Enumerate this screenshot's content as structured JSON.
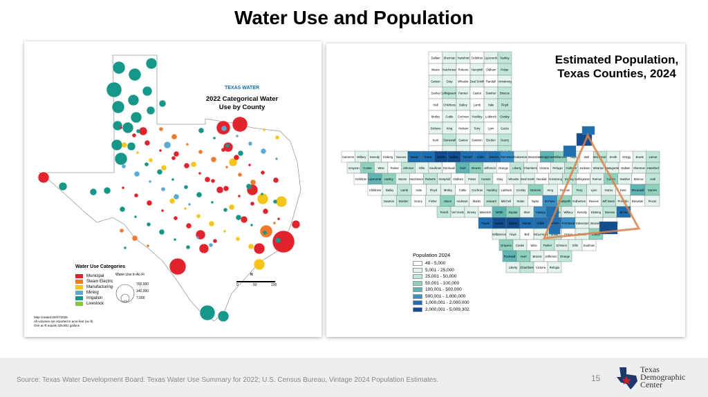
{
  "slide": {
    "title": "Water Use and Population",
    "page_number": "15",
    "source": "Source: Texas Water Development Board. Texas Water Use Summary for 2022; U.S. Census Bureau, Vintage 2024 Population Estimates."
  },
  "left_map": {
    "logo_text": "TEXAS WATER",
    "title": "2022 Categorical Water Use by County",
    "legend_title": "Water Use Categories",
    "categories": [
      {
        "label": "Municipal",
        "color": "#e3232c"
      },
      {
        "label": "Steam Electric",
        "color": "#f27a2a"
      },
      {
        "label": "Manufacturing",
        "color": "#f5c51a"
      },
      {
        "label": "Mining",
        "color": "#5aa9d6"
      },
      {
        "label": "Irrigation",
        "color": "#15978a"
      },
      {
        "label": "Livestock",
        "color": "#8cc63f"
      }
    ],
    "size_legend_title": "Water Use in Ac-Ft",
    "size_values": [
      "700,000",
      "140,000",
      "7,000"
    ],
    "scale_labels": [
      "0",
      "50",
      "100"
    ],
    "north": "N",
    "notes": [
      "Map created 02/07/2025",
      "All volumes are reported in acre-feet (ac-ft)",
      "One ac-ft equals 325,851 gallons"
    ]
  },
  "right_map": {
    "title": "Estimated Population, Texas Counties, 2024",
    "legend_title": "Population 2024",
    "legend": [
      {
        "label": "48 - 5,000",
        "color": "#ffffff"
      },
      {
        "label": "5,001 - 25,000",
        "color": "#e3f4ec"
      },
      {
        "label": "25,001 - 50,000",
        "color": "#bfe6d6"
      },
      {
        "label": "50,001 - 100,000",
        "color": "#8fd1bf"
      },
      {
        "label": "100,001 - 500,000",
        "color": "#5fb5b5"
      },
      {
        "label": "500,001 - 1,000,000",
        "color": "#3a8fc4"
      },
      {
        "label": "1,000,001 - 2,000,000",
        "color": "#1f6fb0"
      },
      {
        "label": "2,000,001 - 5,009,302",
        "color": "#114d8f"
      }
    ],
    "county_labels": [
      "Dallam",
      "Sherman",
      "Hansford",
      "Ochiltree",
      "Lipscomb",
      "Hartley",
      "Moore",
      "Hutchinson",
      "Roberts",
      "Hemphill",
      "Oldham",
      "Potter",
      "Carson",
      "Gray",
      "Wheeler",
      "Deaf Smith",
      "Randall",
      "Armstrong",
      "Donley",
      "Collingsworth",
      "Parmer",
      "Castro",
      "Swisher",
      "Briscoe",
      "Hall",
      "Childress",
      "Bailey",
      "Lamb",
      "Hale",
      "Floyd",
      "Motley",
      "Cottle",
      "Cochran",
      "Hockley",
      "Lubbock",
      "Crosby",
      "Dickens",
      "King",
      "Yoakum",
      "Terry",
      "Lynn",
      "Garza",
      "Kent",
      "Stonewall",
      "Gaines",
      "Dawson",
      "Borden",
      "Scurry",
      "Fisher",
      "Jones",
      "Andrews",
      "Martin",
      "Howard",
      "Mitchell",
      "Nolan",
      "Taylor",
      "El Paso",
      "Hudspeth",
      "Culberson",
      "Reeves",
      "Jeff Davis",
      "Presidio",
      "Brewster",
      "Pecos",
      "Terrell",
      "Val Verde",
      "Kinney",
      "Maverick",
      "Webb",
      "Zapata",
      "Starr",
      "Hidalgo",
      "Cameron",
      "Willacy",
      "Kenedy",
      "Kleberg",
      "Nueces",
      "Bexar",
      "Travis",
      "Harris",
      "Dallas",
      "Tarrant",
      "Collin",
      "Denton",
      "Fort Bend",
      "Galveston",
      "Brazoria",
      "Montgomery",
      "Williamson",
      "Hays",
      "Bell",
      "McLennan",
      "Smith",
      "Gregg",
      "Bowie",
      "Lamar",
      "Grayson",
      "Cooke",
      "Wise",
      "Parker",
      "Johnson",
      "Ellis",
      "Kaufman",
      "Rockwall",
      "Hunt",
      "Brazos",
      "Jefferson",
      "Orange",
      "Liberty",
      "Chambers",
      "Victoria",
      "Refugio",
      "Calhoun",
      "Jackson",
      "Wharton",
      "Matagorda"
    ]
  },
  "chart_data": [
    {
      "type": "bubble-map",
      "title": "2022 Categorical Water Use by County",
      "size_legend_ac_ft": [
        700000,
        140000,
        7000
      ],
      "categories": [
        "Municipal",
        "Steam Electric",
        "Manufacturing",
        "Mining",
        "Irrigation",
        "Livestock"
      ]
    },
    {
      "type": "choropleth",
      "title": "Estimated Population, Texas Counties, 2024",
      "classes": [
        "48 - 5,000",
        "5,001 - 25,000",
        "25,001 - 50,000",
        "50,001 - 100,000",
        "100,001 - 500,000",
        "500,001 - 1,000,000",
        "1,000,001 - 2,000,000",
        "2,000,001 - 5,009,302"
      ]
    }
  ],
  "branding": {
    "org_line1": "Texas",
    "org_line2": "Demographic",
    "org_line3": "Center"
  }
}
